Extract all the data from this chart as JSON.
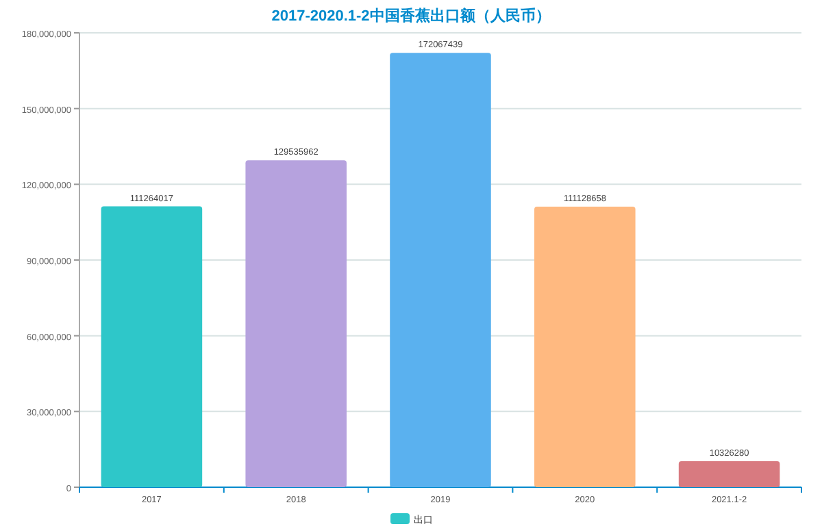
{
  "chart_data": {
    "type": "bar",
    "title": "2017-2020.1-2中国香蕉出口额（人民币）",
    "categories": [
      "2017",
      "2018",
      "2019",
      "2020",
      "2021.1-2"
    ],
    "series": [
      {
        "name": "出口",
        "color": "#2ec7c9",
        "colors": [
          "#2ec7c9",
          "#b6a2de",
          "#5ab1ef",
          "#ffb980",
          "#d87a80"
        ],
        "values": [
          111264017,
          129535962,
          172067439,
          111128658,
          10326280
        ]
      }
    ],
    "ylim": [
      0,
      180000000
    ],
    "yticks": [
      {
        "value": 0,
        "label": "0"
      },
      {
        "value": 30000000,
        "label": "30,000,000"
      },
      {
        "value": 60000000,
        "label": "60,000,000"
      },
      {
        "value": 90000000,
        "label": "90,000,000"
      },
      {
        "value": 120000000,
        "label": "120,000,000"
      },
      {
        "value": 150000000,
        "label": "150,000,000"
      },
      {
        "value": 180000000,
        "label": "180,000,000"
      }
    ],
    "grid": "y",
    "legend": "bottom",
    "data_labels": true
  }
}
